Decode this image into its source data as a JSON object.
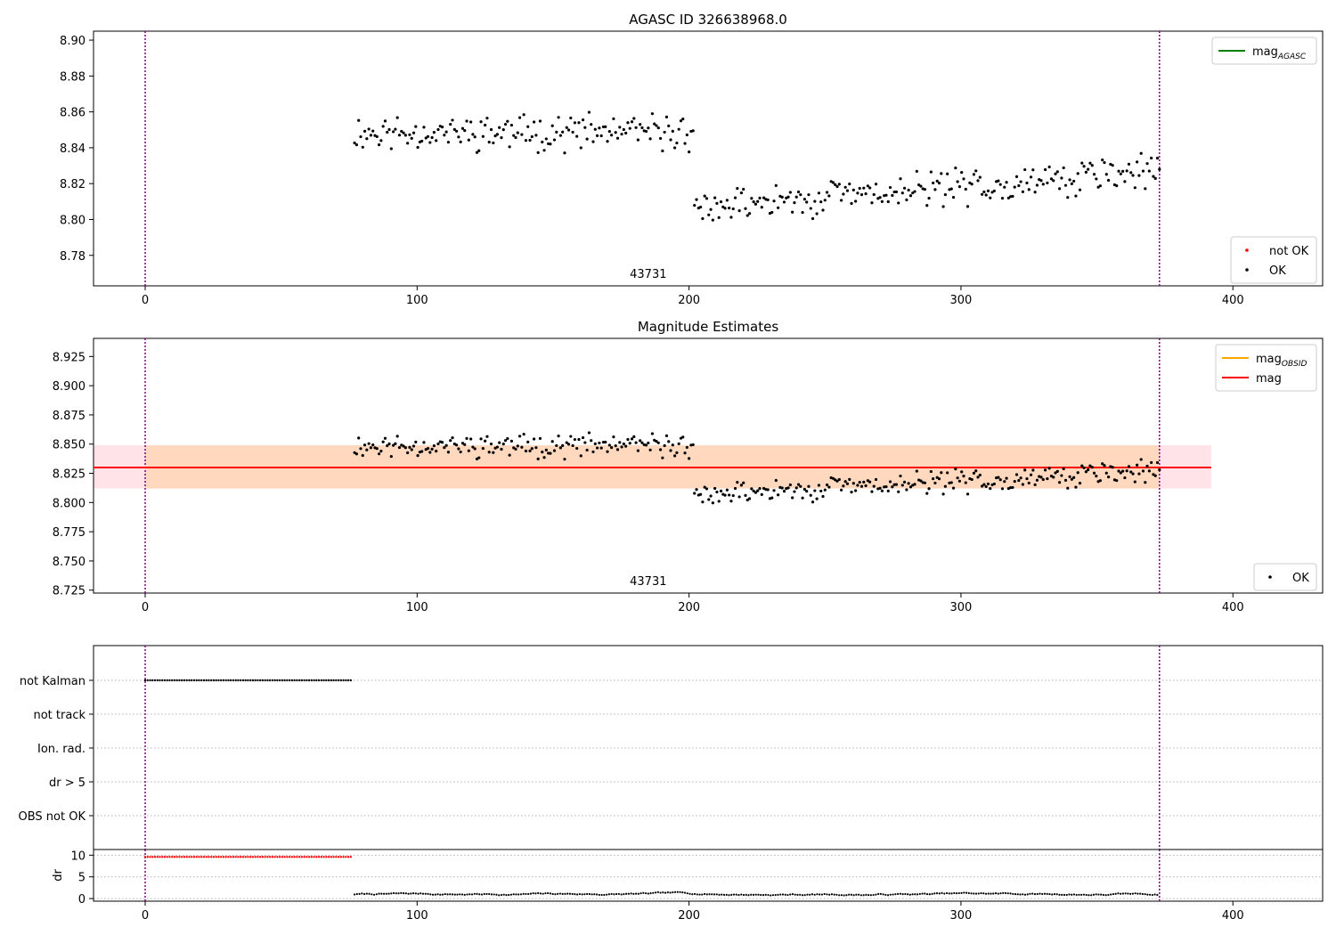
{
  "chart_data": [
    {
      "type": "scatter",
      "title": "AGASC ID 326638968.0",
      "xlim": [
        -19,
        433
      ],
      "ylim": [
        8.763,
        8.905
      ],
      "xticks": [
        0,
        100,
        200,
        300,
        400
      ],
      "yticks": [
        8.78,
        8.8,
        8.82,
        8.84,
        8.86,
        8.88,
        8.9
      ],
      "ytick_labels": [
        "8.78",
        "8.80",
        "8.82",
        "8.84",
        "8.86",
        "8.88",
        "8.90"
      ],
      "vlines": [
        0,
        373
      ],
      "obsid_label": {
        "text": "43731",
        "x": 185
      },
      "series": [
        {
          "name": "not OK",
          "color": "#ff0000",
          "points": []
        },
        {
          "name": "OK",
          "color": "#000000",
          "segments": [
            {
              "x_start": 77,
              "x_end": 202,
              "base": 8.8485,
              "slope": 0.0,
              "amp": 0.012,
              "seed": 11
            },
            {
              "x_start": 202,
              "x_end": 373,
              "base": 8.806,
              "slope": 0.000125,
              "amp": 0.012,
              "seed": 29
            }
          ]
        }
      ],
      "lines": [
        {
          "name": "mag$_{AGASC}$",
          "label_main": "mag",
          "label_sub": "AGASC",
          "color": "#008000"
        }
      ],
      "legend_upper": [
        {
          "kind": "line",
          "label_main": "mag",
          "label_sub": "AGASC",
          "color": "#008000"
        }
      ],
      "legend_lower": [
        {
          "kind": "point",
          "label": "not OK",
          "color": "#ff0000"
        },
        {
          "kind": "point",
          "label": "OK",
          "color": "#000000"
        }
      ]
    },
    {
      "type": "scatter",
      "title": "Magnitude Estimates",
      "xlim": [
        -19,
        433
      ],
      "ylim": [
        8.7225,
        8.9405
      ],
      "xticks": [
        0,
        100,
        200,
        300,
        400
      ],
      "yticks": [
        8.725,
        8.75,
        8.775,
        8.8,
        8.825,
        8.85,
        8.875,
        8.9,
        8.925
      ],
      "ytick_labels": [
        "8.725",
        "8.750",
        "8.775",
        "8.800",
        "8.825",
        "8.850",
        "8.875",
        "8.900",
        "8.925"
      ],
      "vlines": [
        0,
        373
      ],
      "obsid_label": {
        "text": "43731",
        "x": 185
      },
      "mag_line": {
        "y": 8.83,
        "x_start": -19,
        "x_end": 392,
        "color": "#ff0000"
      },
      "mag_band": {
        "y_low": 8.812,
        "y_high": 8.849,
        "x_start": -19,
        "x_end": 392,
        "color": "#ffc0cb"
      },
      "mag_obsid_band": {
        "y_low": 8.812,
        "y_high": 8.849,
        "x_start": 0,
        "x_end": 373,
        "color": "#ffa500"
      },
      "series": [
        {
          "name": "OK",
          "color": "#000000",
          "segments": [
            {
              "x_start": 77,
              "x_end": 202,
              "base": 8.8485,
              "slope": 0.0,
              "amp": 0.012,
              "seed": 11
            },
            {
              "x_start": 202,
              "x_end": 373,
              "base": 8.806,
              "slope": 0.000125,
              "amp": 0.012,
              "seed": 29
            }
          ]
        }
      ],
      "legend_upper": [
        {
          "kind": "line",
          "label_main": "mag",
          "label_sub": "OBSID",
          "color": "#ffa500"
        },
        {
          "kind": "line",
          "label_main": "mag",
          "label_sub": "",
          "color": "#ff0000"
        }
      ],
      "legend_lower": [
        {
          "kind": "point",
          "label": "OK",
          "color": "#000000"
        }
      ]
    },
    {
      "type": "scatter",
      "title": "",
      "xlim": [
        -19,
        433
      ],
      "flag_rows": [
        "not Kalman",
        "not track",
        "Ion. rad.",
        "dr > 5",
        "OBS not OK"
      ],
      "vlines": [
        0,
        373
      ],
      "flag_points": [
        {
          "row": "not Kalman",
          "x_start": 0,
          "x_end": 76,
          "color": "#000000"
        }
      ]
    },
    {
      "type": "scatter",
      "title": "",
      "xlim": [
        -19,
        433
      ],
      "ylim": [
        -0.6,
        11.3
      ],
      "xticks": [
        0,
        100,
        200,
        300,
        400
      ],
      "yticks": [
        0,
        5,
        10
      ],
      "ylabel": "dr",
      "vlines": [
        0,
        373
      ],
      "series": [
        {
          "name": "dr > 5",
          "color": "#ff0000",
          "x_start": 0,
          "x_end": 76,
          "value": 9.6
        },
        {
          "name": "dr",
          "color": "#000000",
          "x_start": 77,
          "x_end": 373,
          "base": 1.0,
          "amp": 0.6,
          "seed": 7
        }
      ]
    }
  ]
}
